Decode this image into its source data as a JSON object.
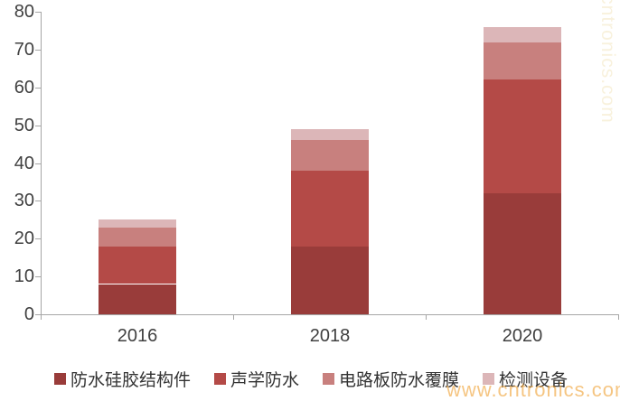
{
  "chart_data": {
    "type": "bar",
    "stacked": true,
    "title": "",
    "xlabel": "",
    "ylabel": "",
    "categories": [
      "2016",
      "2018",
      "2020"
    ],
    "series": [
      {
        "name": "防水硅胶结构件",
        "color": "#993c3a",
        "values": [
          8,
          18,
          32
        ]
      },
      {
        "name": "声学防水",
        "color": "#b44a47",
        "values": [
          10,
          20,
          30
        ]
      },
      {
        "name": "电路板防水覆膜",
        "color": "#c8807e",
        "values": [
          5,
          8,
          10
        ]
      },
      {
        "name": "检测设备",
        "color": "#dcb6b8",
        "values": [
          2,
          3,
          4
        ]
      }
    ],
    "totals": [
      25,
      49,
      76
    ],
    "ylim": [
      0,
      80
    ],
    "yticks": [
      0,
      10,
      20,
      30,
      40,
      50,
      60,
      70,
      80
    ],
    "grid": false,
    "legend_position": "bottom",
    "axis_color": "#a6a6a6",
    "tick_label_color": "#404040"
  },
  "watermark": {
    "text": "www.cntronics.com",
    "color": "#f0a030"
  }
}
